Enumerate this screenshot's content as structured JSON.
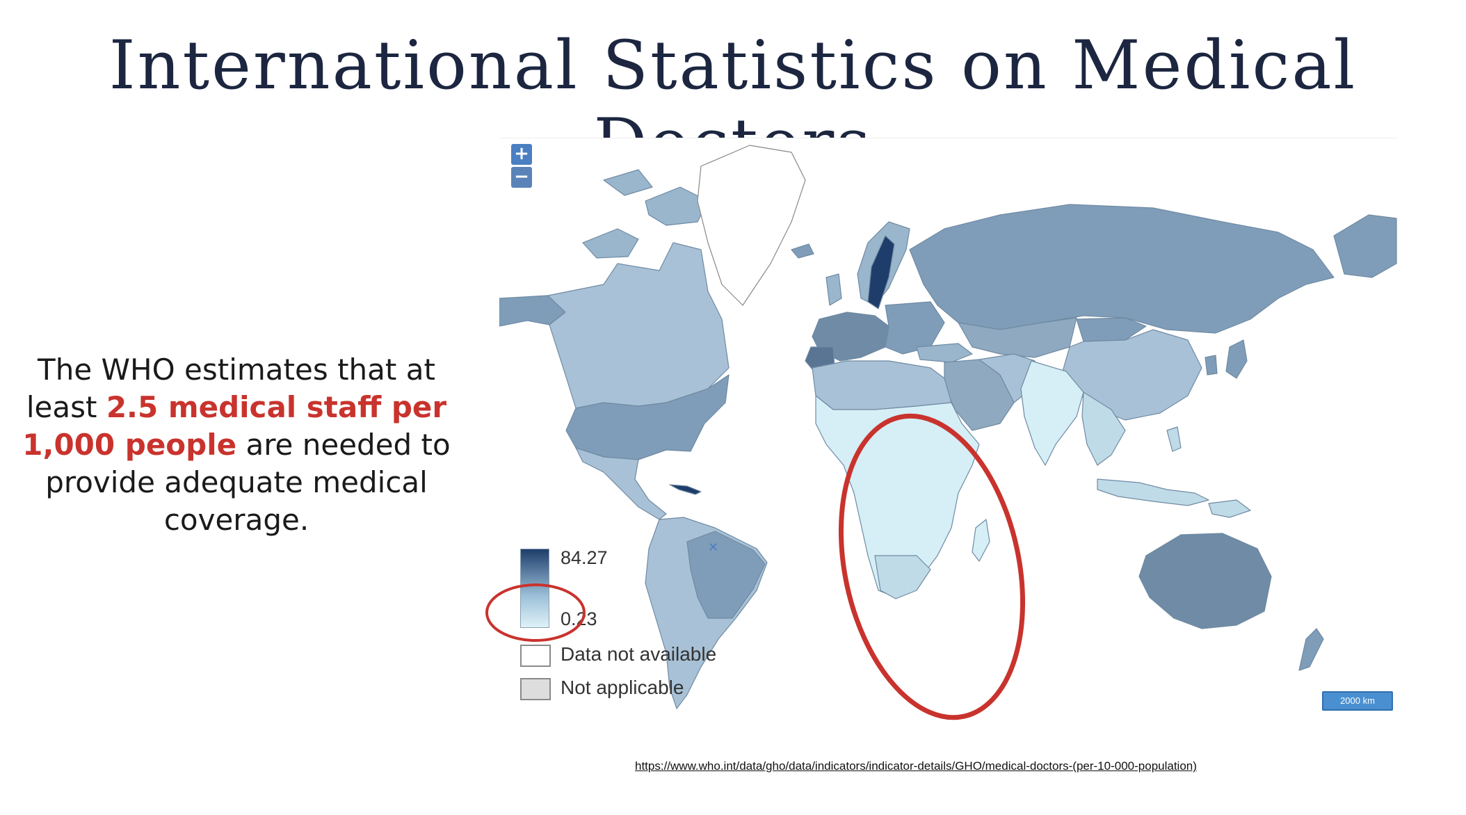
{
  "title": "International Statistics on Medical Doctors",
  "body_text": {
    "part1": "The WHO estimates that at least ",
    "highlight": "2.5 medical staff  per 1,000 people",
    "part2": " are needed to provide adequate medical coverage."
  },
  "map": {
    "zoom_in": "+",
    "zoom_out": "−",
    "legend": {
      "max": "84.27",
      "min": "0.23",
      "not_available": "Data not available",
      "not_applicable": "Not applicable"
    },
    "scale_bar": "2000 km",
    "colors": {
      "high": "#1e3d6b",
      "mid": "#7f9db8",
      "low": "#d6eef6",
      "annotation": "#c9332d"
    }
  },
  "source_link": "https://www.who.int/data/gho/data/indicators/indicator-details/GHO/medical-doctors-(per-10-000-population)"
}
